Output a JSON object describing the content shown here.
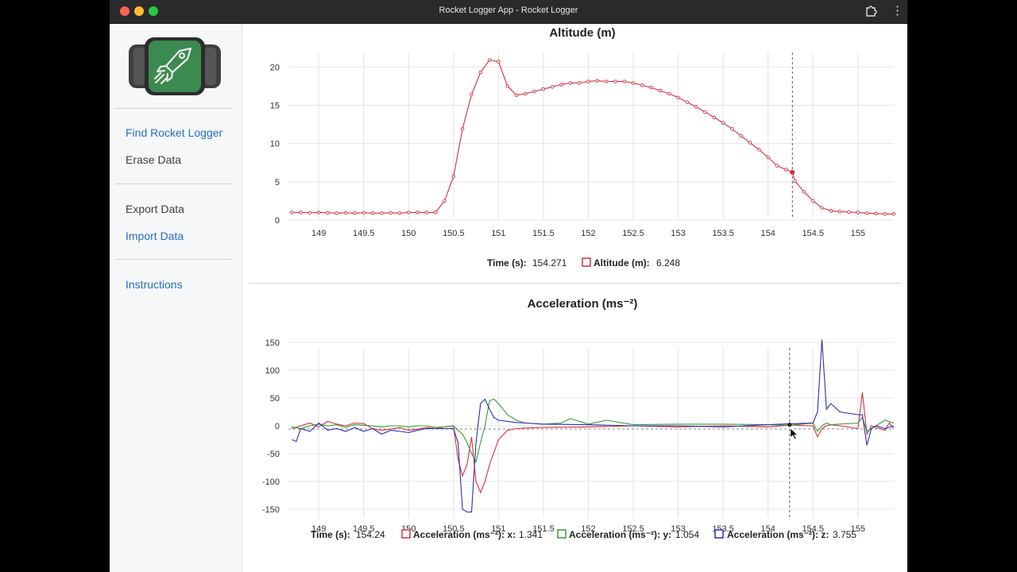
{
  "window": {
    "title": "Rocket Logger App - Rocket Logger",
    "menu_glyph": "⋮"
  },
  "sidebar": {
    "links": [
      {
        "label": "Find Rocket Logger"
      },
      {
        "label": "Erase Data"
      },
      {
        "label": "Export Data"
      },
      {
        "label": "Import Data"
      },
      {
        "label": "Instructions"
      }
    ]
  },
  "colors": {
    "link": "#2a6fc0",
    "altitude": "#d4323f",
    "accel_x": "#d4323f",
    "accel_y": "#3a9a3a",
    "accel_z": "#2c2fb0",
    "logo_green": "#3b8a4f"
  },
  "icons": {
    "logo": "rocket-logger-logo",
    "extension": "puzzle-extension-icon",
    "menu": "kebab-menu-icon"
  },
  "altitude_panel": {
    "readout": {
      "time_label": "Time (s):",
      "time_value": "154.271",
      "series_label": "Altitude (m):",
      "series_value": "6.248"
    }
  },
  "accel_panel": {
    "readout": {
      "time_label": "Time (s):",
      "time_value": "154.24",
      "x_label": "Acceleration (ms⁻²): x:",
      "x_value": "1.341",
      "y_label": "Acceleration (ms⁻²): y:",
      "y_value": "1.054",
      "z_label": "Acceleration (ms⁻²): z:",
      "z_value": "3.755"
    }
  },
  "chart_data": [
    {
      "type": "line",
      "title": "Altitude (m)",
      "xlabel": "",
      "ylabel": "",
      "xlim": [
        148.68,
        155.4
      ],
      "ylim": [
        0,
        22
      ],
      "x_ticks": [
        149,
        149.5,
        150,
        150.5,
        151,
        151.5,
        152,
        152.5,
        153,
        153.5,
        154,
        154.5,
        155
      ],
      "x_tick_labels": [
        "149",
        "149.5",
        "150",
        "150.5",
        "151",
        "151.5",
        "152",
        "152.5",
        "153",
        "153.5",
        "154",
        "154.5",
        "155"
      ],
      "y_ticks": [
        0,
        5,
        10,
        15,
        20
      ],
      "y_tick_labels": [
        "0",
        "5",
        "10",
        "15",
        "20"
      ],
      "grid": true,
      "cursor_x": 154.271,
      "series": [
        {
          "name": "Altitude (m)",
          "x": [
            148.7,
            148.8,
            148.9,
            149.0,
            149.1,
            149.2,
            149.3,
            149.4,
            149.5,
            149.6,
            149.7,
            149.8,
            149.9,
            150.0,
            150.1,
            150.2,
            150.3,
            150.4,
            150.5,
            150.6,
            150.7,
            150.8,
            150.9,
            151.0,
            151.1,
            151.2,
            151.3,
            151.4,
            151.5,
            151.6,
            151.7,
            151.8,
            151.9,
            152.0,
            152.1,
            152.2,
            152.3,
            152.4,
            152.5,
            152.6,
            152.7,
            152.8,
            152.9,
            153.0,
            153.1,
            153.2,
            153.3,
            153.4,
            153.5,
            153.6,
            153.7,
            153.8,
            153.9,
            154.0,
            154.1,
            154.2,
            154.27,
            154.3,
            154.4,
            154.5,
            154.6,
            154.7,
            154.8,
            154.9,
            155.0,
            155.1,
            155.2,
            155.3,
            155.4
          ],
          "y": [
            1.0,
            1.0,
            0.95,
            1.0,
            0.95,
            0.9,
            0.95,
            0.9,
            0.95,
            0.9,
            0.9,
            0.95,
            0.9,
            1.0,
            1.0,
            1.0,
            1.0,
            2.5,
            5.7,
            11.9,
            16.4,
            19.3,
            20.9,
            20.7,
            17.5,
            16.3,
            16.5,
            16.8,
            17.1,
            17.4,
            17.7,
            17.9,
            17.9,
            18.1,
            18.2,
            18.1,
            18.1,
            18.1,
            17.9,
            17.6,
            17.3,
            16.9,
            16.5,
            16.0,
            15.4,
            14.8,
            14.1,
            13.4,
            12.7,
            11.9,
            11.0,
            10.1,
            9.2,
            8.2,
            7.1,
            6.6,
            6.248,
            5.1,
            3.7,
            2.5,
            1.6,
            1.2,
            1.1,
            1.05,
            1.0,
            0.9,
            0.85,
            0.8,
            0.8
          ]
        }
      ]
    },
    {
      "type": "line",
      "title": "Acceleration (ms⁻²)",
      "xlabel": "",
      "ylabel": "",
      "xlim": [
        148.68,
        155.4
      ],
      "ylim": [
        -170,
        170
      ],
      "x_ticks": [
        149,
        149.5,
        150,
        150.5,
        151,
        151.5,
        152,
        152.5,
        153,
        153.5,
        154,
        154.5,
        155
      ],
      "x_tick_labels": [
        "149",
        "149.5",
        "150",
        "150.5",
        "151",
        "151.5",
        "152",
        "152.5",
        "153",
        "153.5",
        "154",
        "154.5",
        "155"
      ],
      "y_ticks": [
        -150,
        -100,
        -50,
        0,
        50,
        100,
        150
      ],
      "y_tick_labels": [
        "-150",
        "-100",
        "-50",
        "0",
        "50",
        "100",
        "150"
      ],
      "grid": true,
      "cursor_x": 154.24,
      "series": [
        {
          "name": "Acceleration (ms⁻²): x",
          "x": [
            148.7,
            148.8,
            148.9,
            149.0,
            149.1,
            149.2,
            149.3,
            149.4,
            149.5,
            149.6,
            149.7,
            149.8,
            149.9,
            150.0,
            150.1,
            150.2,
            150.3,
            150.4,
            150.5,
            150.55,
            150.6,
            150.65,
            150.7,
            150.75,
            150.8,
            150.85,
            150.9,
            151.0,
            151.1,
            151.2,
            151.3,
            151.5,
            152.0,
            152.5,
            153.0,
            153.5,
            154.0,
            154.24,
            154.5,
            154.55,
            154.6,
            154.65,
            154.7,
            154.8,
            155.0,
            155.05,
            155.1,
            155.15,
            155.2,
            155.3,
            155.35,
            155.4
          ],
          "y": [
            -5,
            0,
            5,
            -2,
            8,
            3,
            0,
            5,
            4,
            -5,
            -8,
            -6,
            -3,
            -8,
            -6,
            -3,
            -5,
            -2,
            0,
            -60,
            -90,
            -70,
            -20,
            -100,
            -120,
            -100,
            -70,
            -25,
            -8,
            -5,
            -4,
            -3,
            -2,
            0,
            -2,
            0,
            -2,
            1.341,
            0,
            -20,
            -5,
            0,
            2,
            0,
            -5,
            60,
            -15,
            0,
            -3,
            -8,
            5,
            -5
          ]
        },
        {
          "name": "Acceleration (ms⁻²): y",
          "x": [
            148.7,
            148.8,
            148.9,
            149.0,
            149.1,
            149.2,
            149.3,
            149.4,
            149.5,
            149.6,
            149.7,
            149.8,
            149.9,
            150.0,
            150.1,
            150.2,
            150.3,
            150.4,
            150.5,
            150.55,
            150.6,
            150.65,
            150.7,
            150.75,
            150.8,
            150.85,
            150.9,
            150.95,
            151.0,
            151.1,
            151.2,
            151.3,
            151.5,
            151.7,
            151.8,
            152.0,
            152.2,
            152.5,
            153.0,
            153.5,
            154.0,
            154.24,
            154.5,
            154.55,
            154.6,
            154.65,
            154.7,
            155.0,
            155.05,
            155.1,
            155.2,
            155.3,
            155.4
          ],
          "y": [
            -2,
            -5,
            0,
            3,
            0,
            2,
            -3,
            2,
            1,
            0,
            -2,
            0,
            0,
            -2,
            0,
            0,
            -3,
            -2,
            0,
            -8,
            -15,
            -30,
            -50,
            -65,
            -30,
            0,
            45,
            48,
            40,
            20,
            10,
            5,
            3,
            5,
            13,
            3,
            10,
            2,
            3,
            3,
            2,
            1.054,
            5,
            -10,
            0,
            5,
            2,
            5,
            15,
            -10,
            0,
            10,
            5
          ]
        },
        {
          "name": "Acceleration (ms⁻²): z",
          "x": [
            148.7,
            148.75,
            148.8,
            148.9,
            149.0,
            149.1,
            149.2,
            149.3,
            149.4,
            149.5,
            149.6,
            149.7,
            149.8,
            149.9,
            150.0,
            150.1,
            150.2,
            150.3,
            150.4,
            150.5,
            150.55,
            150.6,
            150.65,
            150.7,
            150.75,
            150.8,
            150.85,
            150.9,
            150.95,
            151.0,
            151.1,
            151.2,
            151.3,
            151.5,
            152.0,
            152.5,
            153.0,
            153.5,
            154.0,
            154.24,
            154.5,
            154.55,
            154.6,
            154.65,
            154.7,
            154.8,
            155.0,
            155.05,
            155.1,
            155.15,
            155.2,
            155.3,
            155.4
          ],
          "y": [
            -25,
            -28,
            -5,
            -10,
            5,
            -8,
            -5,
            -10,
            -3,
            -10,
            -5,
            -15,
            -8,
            -10,
            -12,
            -8,
            -5,
            -5,
            -5,
            -5,
            -30,
            -150,
            -155,
            -155,
            -30,
            40,
            48,
            30,
            15,
            10,
            8,
            6,
            5,
            3,
            2,
            0,
            0,
            -2,
            2,
            3.755,
            5,
            25,
            155,
            30,
            40,
            25,
            20,
            20,
            -35,
            -5,
            0,
            -5,
            0
          ]
        }
      ]
    }
  ]
}
